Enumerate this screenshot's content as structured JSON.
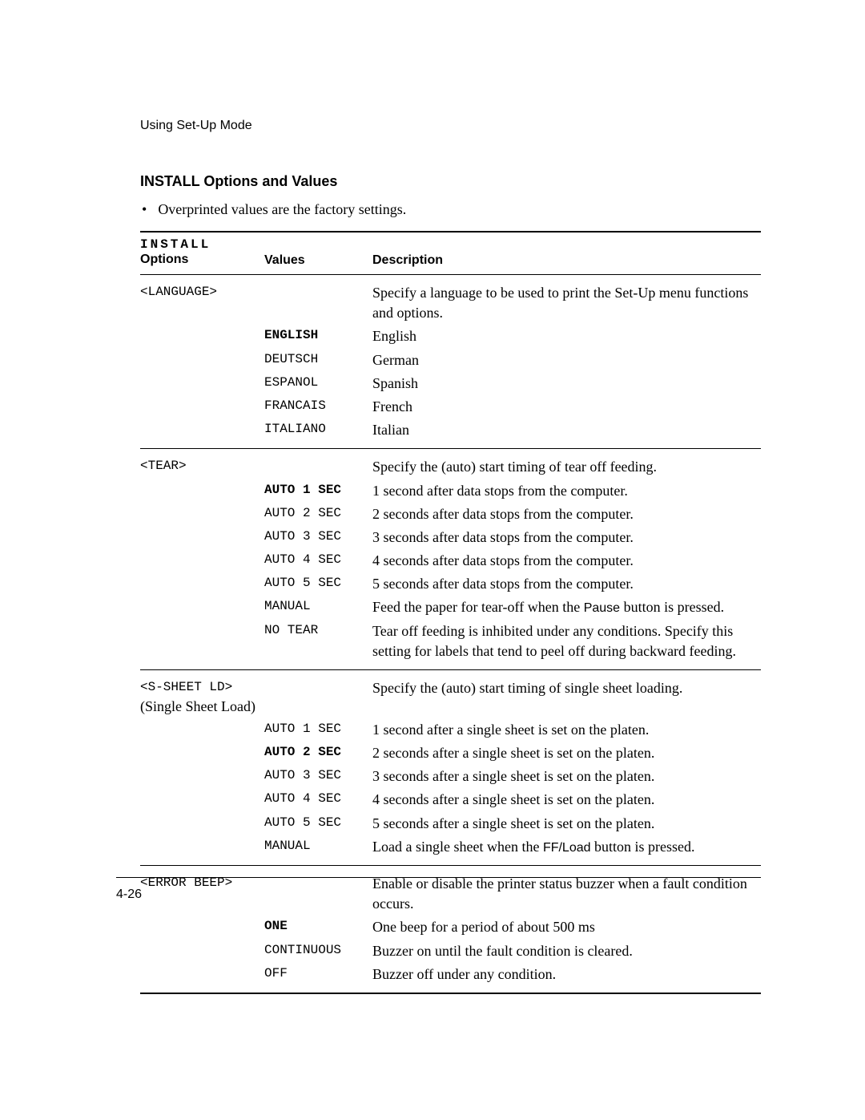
{
  "header": "Using Set-Up Mode",
  "section_title": "INSTALL Options and Values",
  "bullet": "Overprinted values are the factory settings.",
  "table_head": {
    "install": "INSTALL",
    "options": "Options",
    "values": "Values",
    "description": "Description"
  },
  "groups": [
    {
      "option_code": "<LANGUAGE>",
      "option_note": "",
      "intro_desc": "Specify a language to be used to print the Set-Up menu functions and options.",
      "rows": [
        {
          "value": "ENGLISH",
          "bold": true,
          "desc": "English"
        },
        {
          "value": "DEUTSCH",
          "bold": false,
          "desc": "German"
        },
        {
          "value": "ESPANOL",
          "bold": false,
          "desc": "Spanish"
        },
        {
          "value": "FRANCAIS",
          "bold": false,
          "desc": "French"
        },
        {
          "value": "ITALIANO",
          "bold": false,
          "desc": "Italian"
        }
      ]
    },
    {
      "option_code": "<TEAR>",
      "option_note": "",
      "intro_desc": "Specify the (auto) start timing of tear off feeding.",
      "rows": [
        {
          "value": "AUTO 1 SEC",
          "bold": true,
          "desc": "1 second after data stops from the computer."
        },
        {
          "value": "AUTO 2 SEC",
          "bold": false,
          "desc": "2 seconds after data stops from the computer."
        },
        {
          "value": "AUTO 3 SEC",
          "bold": false,
          "desc": "3 seconds after data stops from the computer."
        },
        {
          "value": "AUTO 4 SEC",
          "bold": false,
          "desc": "4 seconds after data stops from the computer."
        },
        {
          "value": "AUTO 5 SEC",
          "bold": false,
          "desc": "5 seconds after data stops from the computer."
        },
        {
          "value": "MANUAL",
          "bold": false,
          "desc_pre": "Feed the paper for tear-off when the ",
          "desc_sans": "Pause",
          "desc_post": " button is pressed."
        },
        {
          "value": "NO TEAR",
          "bold": false,
          "desc": "Tear off feeding is inhibited under any conditions. Specify this setting for labels that tend to peel off during backward feeding."
        }
      ]
    },
    {
      "option_code": "<S-SHEET LD>",
      "option_note": "(Single Sheet Load)",
      "intro_desc": "Specify the (auto) start timing of single sheet loading.",
      "rows": [
        {
          "value": "AUTO 1 SEC",
          "bold": false,
          "desc": "1 second after a single sheet is set on the platen."
        },
        {
          "value": "AUTO 2 SEC",
          "bold": true,
          "desc": "2 seconds after a single sheet is set on the platen."
        },
        {
          "value": "AUTO 3 SEC",
          "bold": false,
          "desc": "3 seconds after a single sheet is set on the platen."
        },
        {
          "value": "AUTO 4 SEC",
          "bold": false,
          "desc": "4 seconds after a single sheet is set on the platen."
        },
        {
          "value": "AUTO 5 SEC",
          "bold": false,
          "desc": "5 seconds after a single sheet is set on the platen."
        },
        {
          "value": "MANUAL",
          "bold": false,
          "desc_pre": "Load a single sheet when the ",
          "desc_sans": "FF/Load",
          "desc_post": " button is pressed."
        }
      ]
    },
    {
      "option_code": "<ERROR BEEP>",
      "option_note": "",
      "intro_desc": "Enable or disable the printer status buzzer when a fault condition occurs.",
      "rows": [
        {
          "value": "ONE",
          "bold": true,
          "desc": "One beep for a period of about 500 ms"
        },
        {
          "value": "CONTINUOUS",
          "bold": false,
          "desc": "Buzzer on until the fault condition is cleared."
        },
        {
          "value": "OFF",
          "bold": false,
          "desc": "Buzzer off under any condition."
        }
      ]
    }
  ],
  "page_number": "4-26"
}
